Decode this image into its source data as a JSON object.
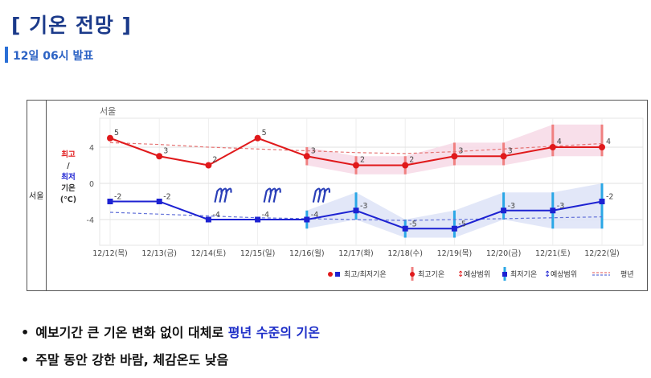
{
  "header": {
    "title": "[ 기온 전망 ]",
    "subtitle": "12일 06시 발표"
  },
  "panel": {
    "row_label": "서울"
  },
  "colors": {
    "max": "#e0191b",
    "min": "#1d22d2",
    "max_band": "#f7d9e6",
    "min_band": "#dde3f7",
    "max_range_bar": "#f08080",
    "min_range_bar": "#2aa7e6",
    "normal_max": "#e57373",
    "normal_min": "#6170d8"
  },
  "chart_data": {
    "type": "line",
    "title": "서울",
    "ylabel_lines": [
      "최고",
      "/",
      "최저",
      "기온",
      "(℃)"
    ],
    "y_ticks": [
      "4",
      "0",
      "-4"
    ],
    "ylim": [
      -7,
      6.5
    ],
    "grid": true,
    "categories": [
      "12/12(목)",
      "12/13(금)",
      "12/14(토)",
      "12/15(일)",
      "12/16(월)",
      "12/17(화)",
      "12/18(수)",
      "12/19(목)",
      "12/20(금)",
      "12/21(토)",
      "12/22(일)"
    ],
    "series": [
      {
        "name": "최고기온",
        "values": [
          5,
          3,
          2,
          5,
          3,
          2,
          2,
          3,
          3,
          4,
          4
        ],
        "labels": [
          "5",
          "3",
          "2",
          "5",
          "3",
          "2",
          "2",
          "3",
          "3",
          "4",
          "4"
        ]
      },
      {
        "name": "최저기온",
        "values": [
          -2,
          -2,
          -4,
          -4,
          -4,
          -3,
          -5,
          -5,
          -3,
          -3,
          -2
        ],
        "labels": [
          "-2",
          "-2",
          "-4",
          "-4",
          "-4",
          "-3",
          "-5",
          "-5",
          "-3",
          "-3",
          "-2"
        ]
      }
    ],
    "max_range": [
      null,
      null,
      null,
      null,
      [
        2,
        4
      ],
      [
        1,
        3
      ],
      [
        1,
        3
      ],
      [
        2,
        4.5
      ],
      [
        2,
        4.5
      ],
      [
        3,
        6.5
      ],
      [
        3,
        6.5
      ]
    ],
    "min_range": [
      null,
      null,
      null,
      null,
      [
        -5,
        -3
      ],
      [
        -4,
        -1
      ],
      [
        -6,
        -4
      ],
      [
        -6,
        -3
      ],
      [
        -4,
        -1
      ],
      [
        -5,
        -1
      ],
      [
        -5,
        0
      ]
    ],
    "normal_max": [
      4.5,
      4.3,
      4.0,
      3.8,
      3.6,
      3.4,
      3.3,
      3.5,
      3.8,
      4.1,
      4.4
    ],
    "normal_min": [
      -3.2,
      -3.4,
      -3.6,
      -3.8,
      -3.9,
      -4.0,
      -4.1,
      -4.0,
      -3.9,
      -3.8,
      -3.7
    ],
    "wind_days": [
      "12/14(토)",
      "12/15(일)",
      "12/16(월)"
    ],
    "legend": {
      "position": "bottom-right",
      "items": [
        "최고/최저기온",
        "최고기온",
        "예상범위",
        "최저기온",
        "예상범위",
        "평년"
      ]
    }
  },
  "bullets": [
    {
      "pre": "예보기간 큰 기온 변화 없이 대체로 ",
      "hl": "평년 수준의 기온",
      "post": ""
    },
    {
      "pre": "주말 동안 강한 바람, 체감온도 낮음",
      "hl": "",
      "post": ""
    }
  ]
}
